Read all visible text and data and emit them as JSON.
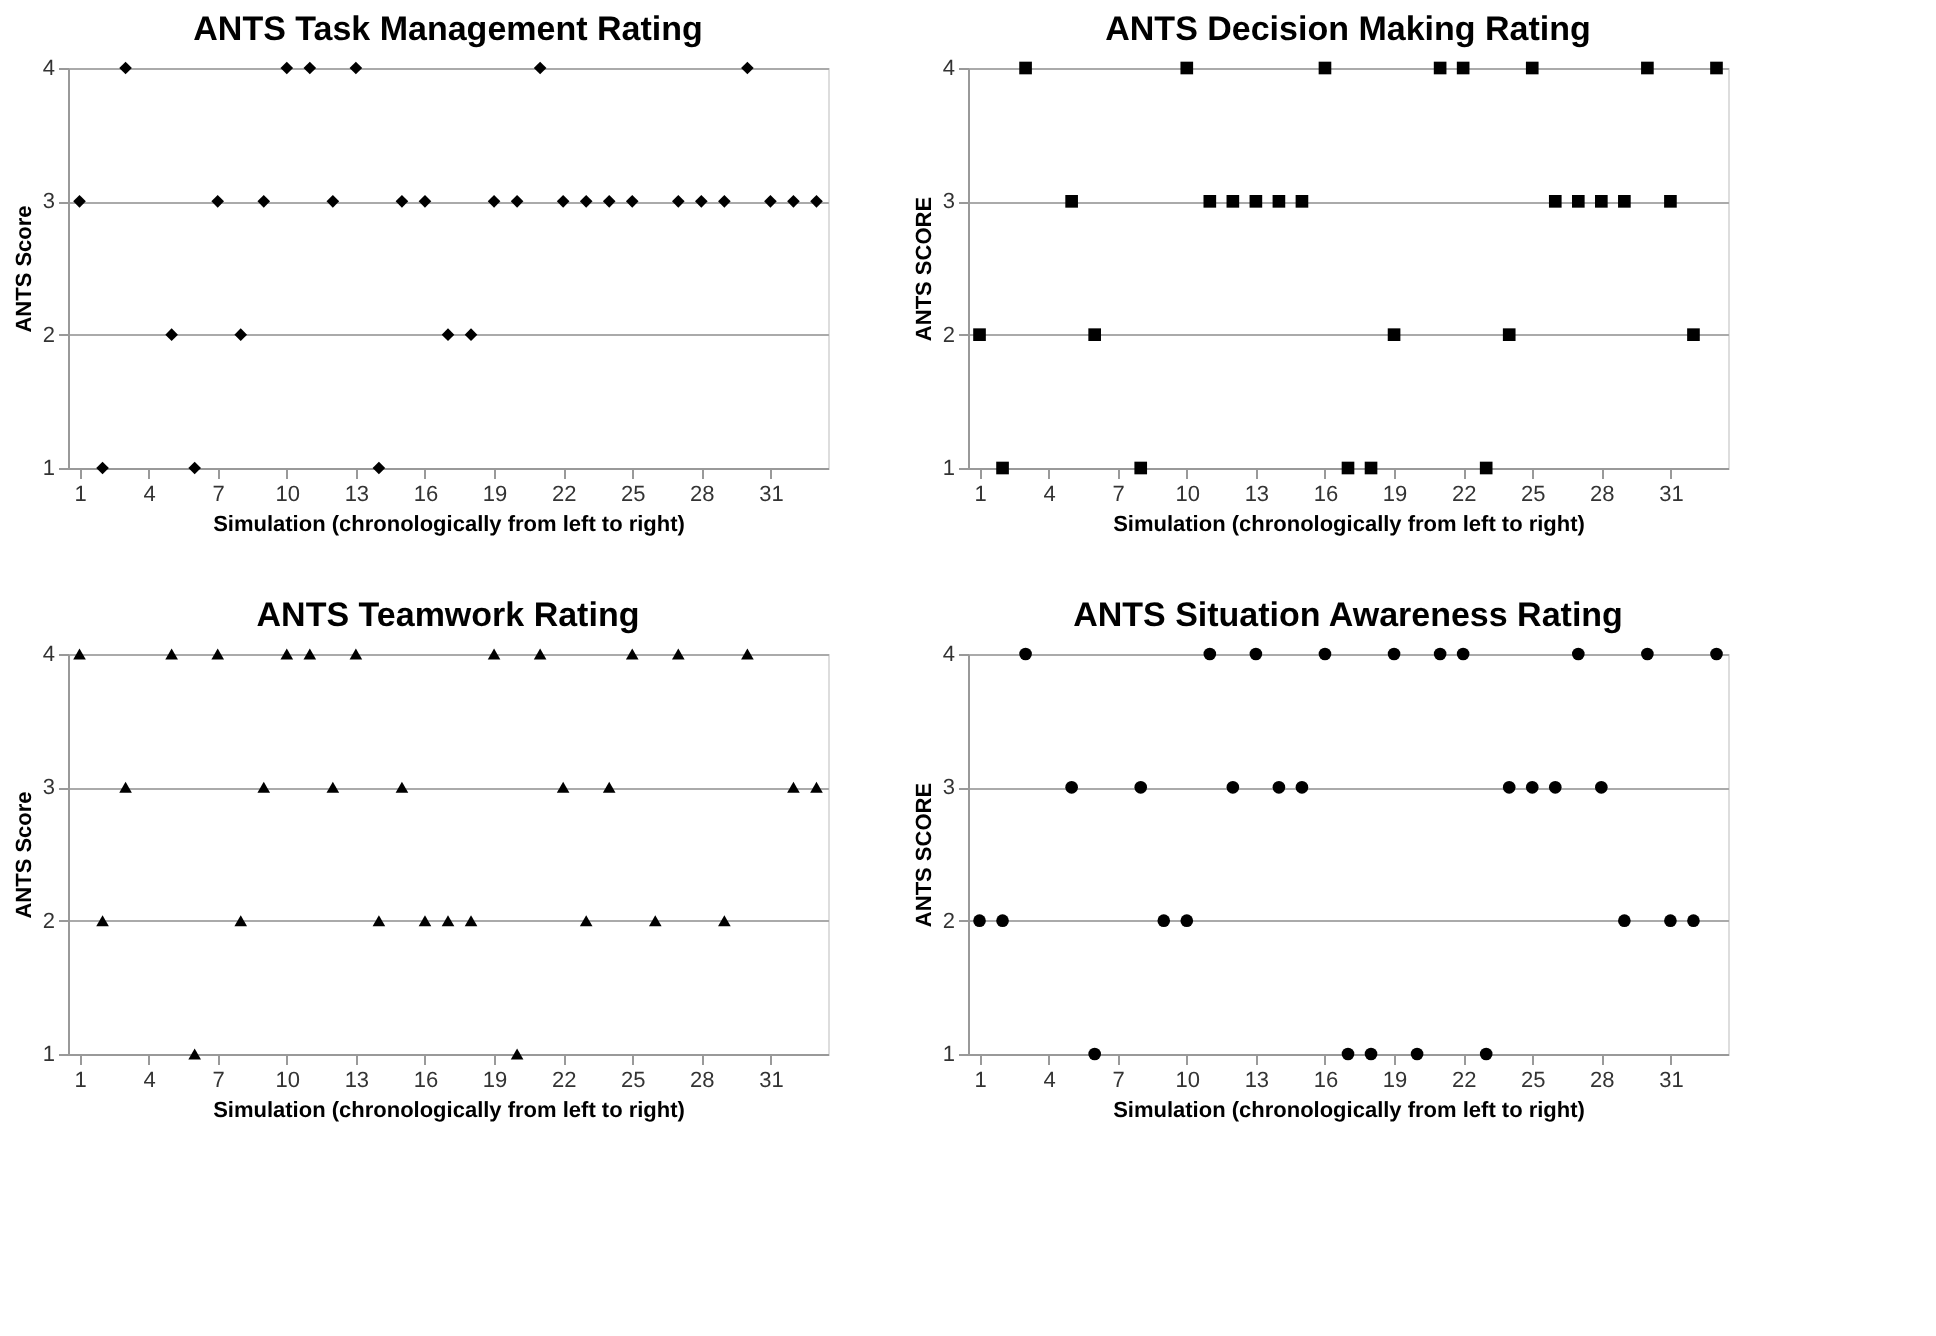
{
  "chart_data": [
    {
      "type": "scatter",
      "title": "ANTS Task Management Rating",
      "xlabel": "Simulation (chronologically from left to right)",
      "ylabel": "ANTS Score",
      "marker": "diamond",
      "grid": "y",
      "xlim": [
        0.5,
        33.5
      ],
      "xticks": [
        1,
        4,
        7,
        10,
        13,
        16,
        19,
        22,
        25,
        28,
        31
      ],
      "ylim": [
        1,
        4
      ],
      "yticks": [
        1,
        2,
        3,
        4
      ],
      "series": [
        {
          "color": "#000000",
          "x": [
            1,
            2,
            3,
            5,
            6,
            7,
            8,
            9,
            10,
            11,
            12,
            13,
            14,
            15,
            16,
            17,
            18,
            19,
            20,
            21,
            22,
            23,
            24,
            25,
            27,
            28,
            29,
            30,
            31,
            32,
            33
          ],
          "values": [
            3,
            1,
            4,
            2,
            1,
            3,
            2,
            3,
            4,
            4,
            3,
            4,
            1,
            3,
            3,
            2,
            2,
            3,
            3,
            4,
            3,
            3,
            3,
            3,
            3,
            3,
            3,
            4,
            3,
            3,
            3
          ]
        }
      ]
    },
    {
      "type": "scatter",
      "title": "ANTS Decision Making Rating",
      "xlabel": "Simulation (chronologically from left to right)",
      "ylabel": "ANTS SCORE",
      "marker": "square",
      "grid": "y",
      "xlim": [
        0.5,
        33.5
      ],
      "xticks": [
        1,
        4,
        7,
        10,
        13,
        16,
        19,
        22,
        25,
        28,
        31
      ],
      "ylim": [
        1,
        4
      ],
      "yticks": [
        1,
        2,
        3,
        4
      ],
      "series": [
        {
          "color": "#000000",
          "x": [
            1,
            2,
            3,
            5,
            6,
            8,
            10,
            11,
            12,
            13,
            14,
            15,
            16,
            17,
            18,
            19,
            21,
            22,
            23,
            24,
            25,
            26,
            27,
            28,
            29,
            30,
            31,
            32,
            33
          ],
          "values": [
            2,
            1,
            4,
            3,
            2,
            1,
            4,
            3,
            3,
            3,
            3,
            3,
            4,
            1,
            1,
            2,
            4,
            4,
            1,
            2,
            4,
            3,
            3,
            3,
            3,
            4,
            3,
            2,
            4
          ]
        }
      ]
    },
    {
      "type": "scatter",
      "title": "ANTS Teamwork  Rating",
      "xlabel": "Simulation (chronologically from left to right)",
      "ylabel": "ANTS Score",
      "marker": "triangle",
      "grid": "y",
      "xlim": [
        0.5,
        33.5
      ],
      "xticks": [
        1,
        4,
        7,
        10,
        13,
        16,
        19,
        22,
        25,
        28,
        31
      ],
      "ylim": [
        1,
        4
      ],
      "yticks": [
        1,
        2,
        3,
        4
      ],
      "series": [
        {
          "color": "#000000",
          "x": [
            1,
            2,
            3,
            5,
            6,
            7,
            8,
            9,
            10,
            11,
            12,
            13,
            14,
            15,
            16,
            17,
            18,
            19,
            20,
            21,
            22,
            23,
            24,
            25,
            26,
            27,
            29,
            30,
            32,
            33
          ],
          "values": [
            4,
            2,
            3,
            4,
            1,
            4,
            2,
            3,
            4,
            4,
            3,
            4,
            2,
            3,
            2,
            2,
            2,
            4,
            1,
            4,
            3,
            2,
            3,
            4,
            2,
            4,
            2,
            4,
            3,
            3
          ]
        }
      ]
    },
    {
      "type": "scatter",
      "title": "ANTS Situation Awareness Rating",
      "xlabel": "Simulation (chronologically from left to right)",
      "ylabel": "ANTS SCORE",
      "marker": "circle",
      "grid": "y",
      "xlim": [
        0.5,
        33.5
      ],
      "xticks": [
        1,
        4,
        7,
        10,
        13,
        16,
        19,
        22,
        25,
        28,
        31
      ],
      "ylim": [
        1,
        4
      ],
      "yticks": [
        1,
        2,
        3,
        4
      ],
      "series": [
        {
          "color": "#000000",
          "x": [
            1,
            2,
            3,
            5,
            6,
            8,
            9,
            10,
            11,
            12,
            13,
            14,
            15,
            16,
            17,
            18,
            19,
            20,
            21,
            22,
            23,
            24,
            25,
            26,
            27,
            28,
            29,
            30,
            31,
            32,
            33
          ],
          "values": [
            2,
            2,
            4,
            3,
            1,
            3,
            2,
            2,
            4,
            3,
            4,
            3,
            3,
            4,
            1,
            1,
            4,
            1,
            4,
            4,
            1,
            3,
            3,
            3,
            4,
            3,
            2,
            4,
            2,
            2,
            4
          ]
        }
      ]
    }
  ]
}
